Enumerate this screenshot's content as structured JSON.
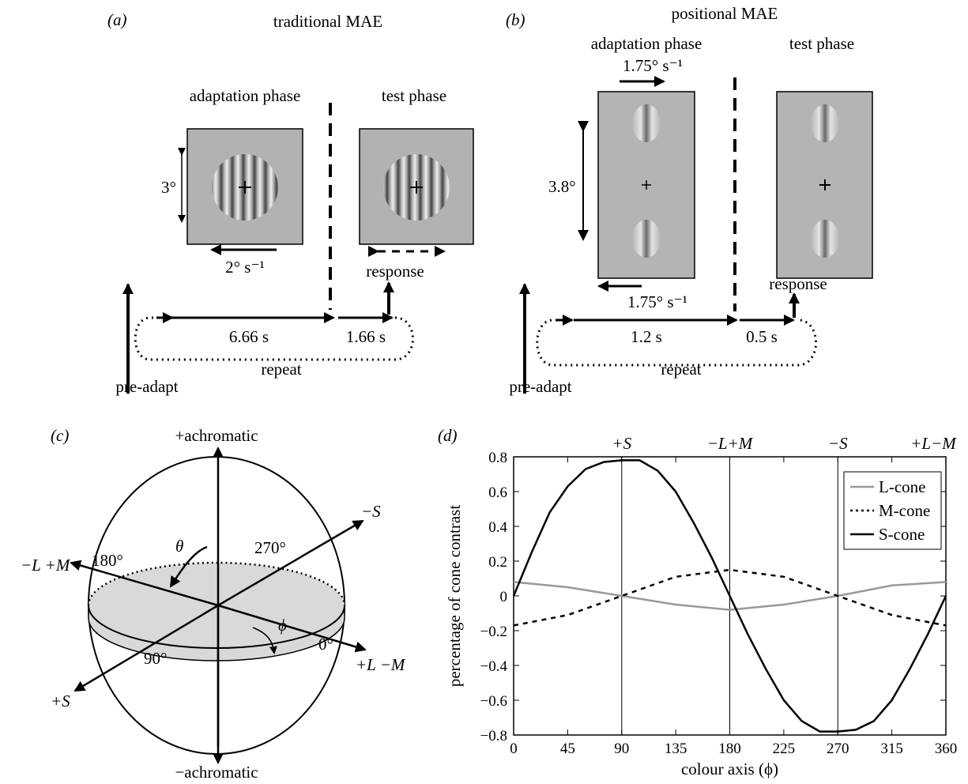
{
  "panel_a": {
    "letter": "(a)",
    "title": "traditional MAE",
    "adaptation_label": "adaptation phase",
    "test_label": "test phase",
    "size_label": "3°",
    "speed_label": "2° s⁻¹",
    "response_label": "response",
    "adapt_duration": "6.66 s",
    "test_duration": "1.66 s",
    "repeat_label": "repeat",
    "preadapt_label": "pre-adapt"
  },
  "panel_b": {
    "letter": "(b)",
    "title": "positional MAE",
    "adaptation_label": "adaptation phase",
    "test_label": "test phase",
    "speed_top_label": "1.75° s⁻¹",
    "speed_bottom_label": "1.75° s⁻¹",
    "size_label": "3.8°",
    "response_label": "response",
    "adapt_duration": "1.2 s",
    "test_duration": "0.5 s",
    "repeat_label": "repeat",
    "preadapt_label": "pre-adapt"
  },
  "panel_c": {
    "letter": "(c)",
    "plus_achromatic": "+achromatic",
    "minus_achromatic": "−achromatic",
    "minus_s": "−S",
    "plus_s": "+S",
    "minus_l_plus_m": "−L +M",
    "plus_l_minus_m": "+L −M",
    "deg_180": "180°",
    "deg_270": "270°",
    "deg_90": "90°",
    "deg_0": "0°",
    "theta": "θ",
    "phi": "ϕ"
  },
  "panel_d": {
    "letter": "(d)",
    "top_labels": [
      "+S",
      "−L+M",
      "−S",
      "+L−M"
    ]
  },
  "chart_data": {
    "type": "line",
    "xlabel": "colour axis (ϕ)",
    "ylabel": "percentage of cone contrast",
    "xlim": [
      0,
      360
    ],
    "ylim": [
      -0.8,
      0.8
    ],
    "xticks": [
      0,
      45,
      90,
      135,
      180,
      225,
      270,
      315,
      360
    ],
    "yticks": [
      "0.8",
      "0.6",
      "0.4",
      "0.2",
      "0",
      "−0.2",
      "−0.4",
      "−0.6",
      "−0.8"
    ],
    "vlines": [
      90,
      180,
      270
    ],
    "legend_position": "top-right",
    "series": [
      {
        "name": "L-cone",
        "color": "#999999",
        "style": "solid",
        "x": [
          0,
          45,
          90,
          135,
          180,
          225,
          270,
          315,
          360
        ],
        "values": [
          0.08,
          0.05,
          0.0,
          -0.05,
          -0.08,
          -0.05,
          0.0,
          0.06,
          0.08
        ]
      },
      {
        "name": "M-cone",
        "color": "#000000",
        "style": "dotted",
        "x": [
          0,
          45,
          90,
          135,
          180,
          225,
          270,
          315,
          360
        ],
        "values": [
          -0.17,
          -0.11,
          0.0,
          0.11,
          0.15,
          0.11,
          0.0,
          -0.11,
          -0.17
        ]
      },
      {
        "name": "S-cone",
        "color": "#000000",
        "style": "solid",
        "x": [
          0,
          15,
          30,
          45,
          60,
          75,
          90,
          105,
          120,
          135,
          150,
          165,
          180,
          195,
          210,
          225,
          240,
          255,
          270,
          285,
          300,
          315,
          330,
          345,
          360
        ],
        "values": [
          0.0,
          0.25,
          0.48,
          0.63,
          0.73,
          0.77,
          0.78,
          0.78,
          0.72,
          0.6,
          0.42,
          0.22,
          0.0,
          -0.22,
          -0.42,
          -0.6,
          -0.72,
          -0.78,
          -0.78,
          -0.77,
          -0.72,
          -0.6,
          -0.42,
          -0.22,
          0.0
        ]
      }
    ]
  }
}
